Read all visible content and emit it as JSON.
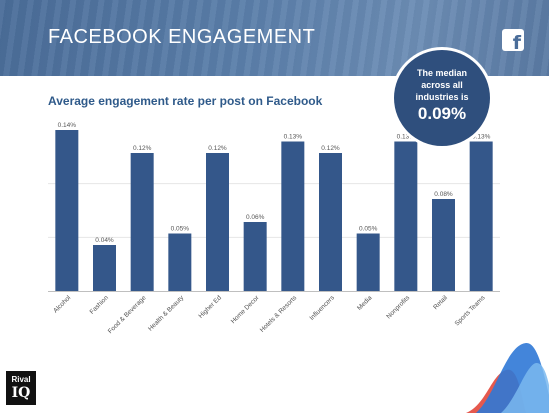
{
  "header": {
    "title": "FACEBOOK ENGAGEMENT",
    "icon": "facebook-f-icon",
    "icon_glyph": "f"
  },
  "median": {
    "text": "The median\nacross all\nindustries is",
    "value": "0.09%"
  },
  "logo": {
    "top": "Rival",
    "bottom": "IQ"
  },
  "colors": {
    "bar": "#34578a",
    "header": "#4a6d99",
    "bubble": "#2f4f7d",
    "subtitle": "#2f5a8a"
  },
  "chart_data": {
    "type": "bar",
    "title": "Average engagement rate per post on Facebook",
    "xlabel": "",
    "ylabel": "",
    "ylim": [
      0,
      0.14
    ],
    "grid": true,
    "categories": [
      "Alcohol",
      "Fashion",
      "Food & Beverage",
      "Health & Beauty",
      "Higher Ed",
      "Home Decor",
      "Hotels & Resorts",
      "Influencers",
      "Media",
      "Nonprofits",
      "Retail",
      "Sports Teams"
    ],
    "values": [
      0.14,
      0.04,
      0.12,
      0.05,
      0.12,
      0.06,
      0.13,
      0.12,
      0.05,
      0.13,
      0.08,
      0.13
    ],
    "value_labels": [
      "0.14%",
      "0.04%",
      "0.12%",
      "0.05%",
      "0.12%",
      "0.06%",
      "0.13%",
      "0.12%",
      "0.05%",
      "0.13%",
      "0.08%",
      "0.13%"
    ]
  }
}
